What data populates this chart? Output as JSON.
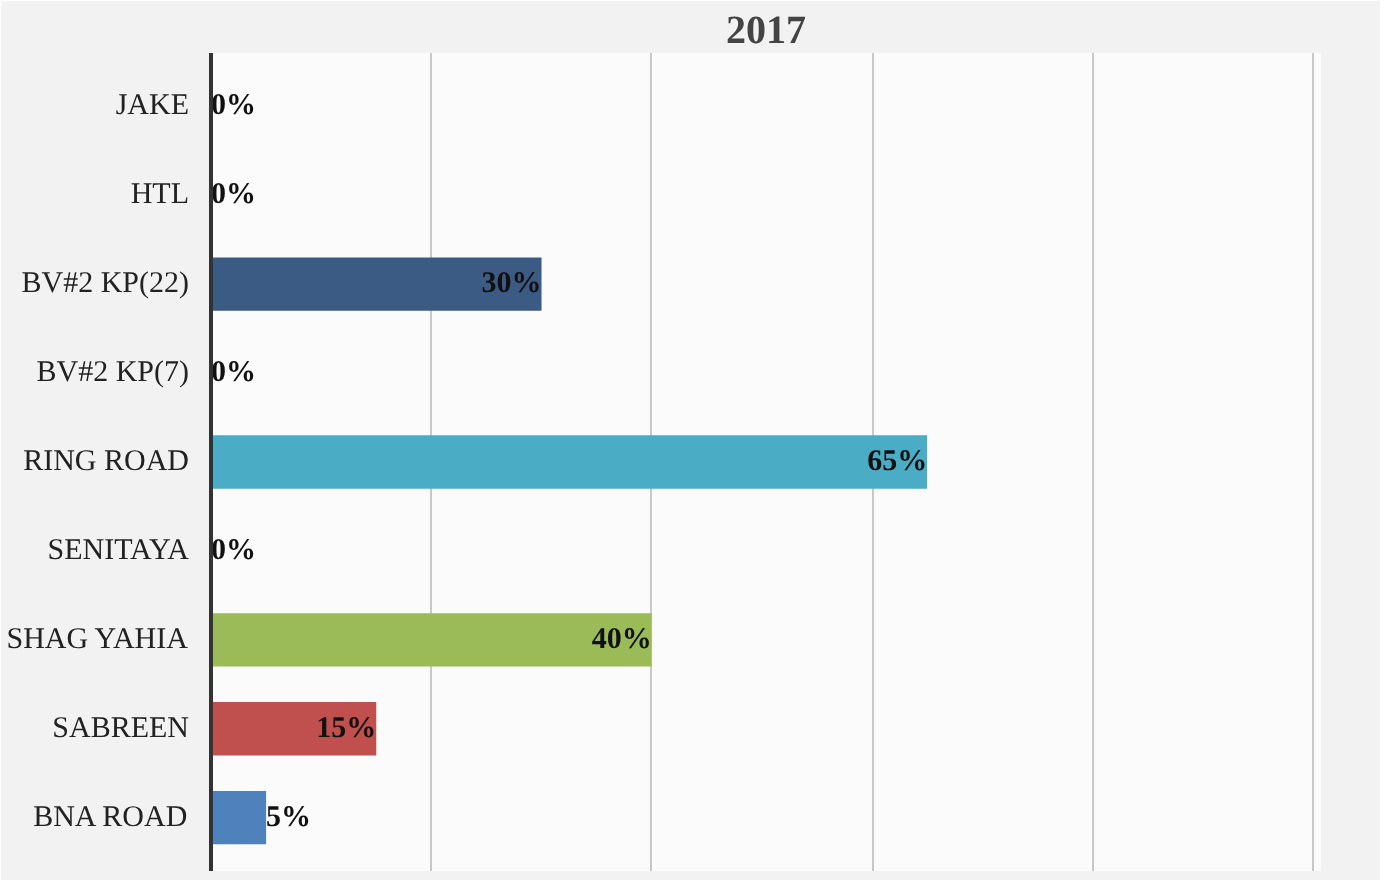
{
  "chart_data": {
    "type": "bar",
    "orientation": "horizontal",
    "title": "2017",
    "categories": [
      "JAKE",
      "HTL",
      "BV#2 KP(22)",
      "BV#2 KP(7)",
      "RING ROAD",
      "SENITAYA",
      "SHAG YAHIA",
      "SABREEN",
      "BNA ROAD"
    ],
    "values": [
      0,
      0,
      30,
      0,
      65,
      0,
      40,
      15,
      5
    ],
    "colors": [
      "#4f81bd",
      "#4f81bd",
      "#3b5b85",
      "#4f81bd",
      "#4bacc6",
      "#4f81bd",
      "#9bbb59",
      "#c0504d",
      "#4f81bd"
    ],
    "value_labels": [
      "0%",
      "0%",
      "30%",
      "0%",
      "65%",
      "0%",
      "40%",
      "15%",
      "5%"
    ],
    "grid": "x",
    "tick_labels": "y"
  }
}
